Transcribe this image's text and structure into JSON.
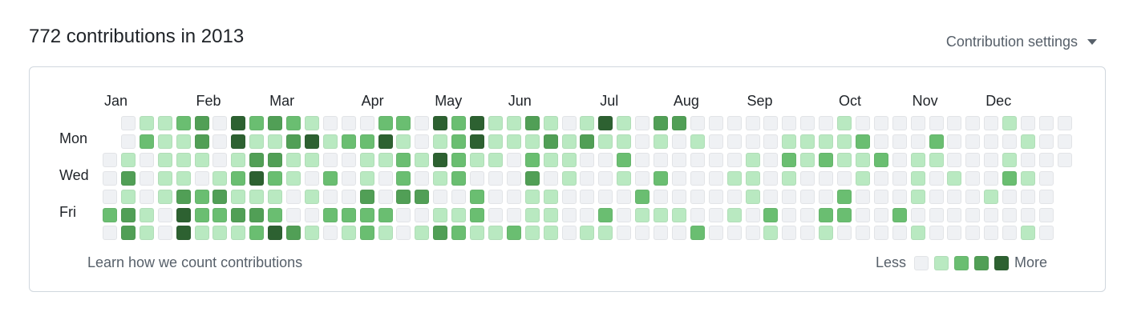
{
  "header": {
    "title": "772 contributions in 2013",
    "settings_label": "Contribution settings"
  },
  "graph": {
    "months": [
      "Jan",
      "Feb",
      "Mar",
      "Apr",
      "May",
      "Jun",
      "Jul",
      "Aug",
      "Sep",
      "Oct",
      "Nov",
      "Dec"
    ],
    "day_labels": [
      "Mon",
      "Wed",
      "Fri"
    ],
    "level_colors": [
      "#eff1f4",
      "#b9e9c1",
      "#6abe71",
      "#519f56",
      "#2d6131"
    ],
    "rows_by_weekday": [
      [
        null,
        0,
        1,
        1,
        2,
        3,
        0,
        4,
        2,
        3,
        2,
        1,
        0,
        0,
        0,
        2,
        2,
        0,
        4,
        2,
        4,
        1,
        1,
        3,
        1,
        0,
        1,
        4,
        1,
        0,
        3,
        3,
        0,
        0,
        0,
        0,
        0,
        0,
        0,
        0,
        1,
        0,
        0,
        0,
        0,
        0,
        0,
        0,
        0,
        1,
        0,
        0,
        0
      ],
      [
        null,
        0,
        2,
        1,
        1,
        3,
        0,
        4,
        1,
        1,
        3,
        4,
        1,
        2,
        2,
        4,
        1,
        0,
        1,
        2,
        4,
        1,
        1,
        1,
        3,
        1,
        3,
        1,
        1,
        0,
        1,
        0,
        1,
        0,
        0,
        0,
        0,
        1,
        1,
        1,
        1,
        2,
        0,
        0,
        0,
        2,
        0,
        0,
        0,
        0,
        1,
        0,
        0
      ],
      [
        0,
        1,
        0,
        1,
        1,
        1,
        0,
        1,
        3,
        3,
        1,
        1,
        0,
        0,
        1,
        1,
        2,
        1,
        4,
        2,
        1,
        1,
        0,
        2,
        1,
        1,
        0,
        0,
        2,
        0,
        0,
        0,
        0,
        0,
        0,
        1,
        0,
        2,
        1,
        2,
        1,
        1,
        2,
        0,
        1,
        1,
        0,
        0,
        0,
        1,
        0,
        0,
        0
      ],
      [
        0,
        3,
        0,
        1,
        1,
        0,
        1,
        2,
        4,
        2,
        1,
        0,
        2,
        0,
        1,
        0,
        2,
        0,
        1,
        2,
        0,
        0,
        0,
        3,
        0,
        1,
        0,
        0,
        1,
        0,
        2,
        0,
        0,
        0,
        1,
        1,
        0,
        1,
        0,
        0,
        0,
        1,
        0,
        0,
        1,
        0,
        1,
        0,
        0,
        2,
        1,
        0,
        null
      ],
      [
        0,
        1,
        0,
        1,
        3,
        2,
        3,
        1,
        1,
        1,
        0,
        1,
        0,
        0,
        3,
        0,
        3,
        3,
        0,
        0,
        2,
        0,
        0,
        1,
        1,
        0,
        0,
        0,
        0,
        2,
        0,
        0,
        0,
        0,
        0,
        1,
        0,
        0,
        0,
        0,
        2,
        0,
        0,
        0,
        1,
        0,
        0,
        0,
        1,
        0,
        0,
        0,
        null
      ],
      [
        2,
        3,
        1,
        0,
        4,
        2,
        2,
        3,
        3,
        2,
        0,
        0,
        2,
        2,
        2,
        2,
        0,
        0,
        1,
        1,
        2,
        0,
        0,
        1,
        1,
        0,
        0,
        2,
        0,
        1,
        1,
        1,
        0,
        0,
        1,
        0,
        2,
        0,
        0,
        2,
        2,
        0,
        0,
        2,
        0,
        0,
        0,
        0,
        0,
        0,
        0,
        0,
        null
      ],
      [
        0,
        3,
        1,
        0,
        4,
        1,
        1,
        1,
        2,
        4,
        3,
        1,
        0,
        1,
        2,
        1,
        0,
        1,
        3,
        2,
        1,
        1,
        2,
        1,
        1,
        0,
        1,
        1,
        0,
        0,
        0,
        0,
        2,
        0,
        0,
        0,
        1,
        0,
        0,
        1,
        0,
        0,
        0,
        0,
        1,
        0,
        0,
        0,
        0,
        0,
        1,
        0,
        null
      ]
    ]
  },
  "footer": {
    "learn_link": "Learn how we count contributions",
    "legend_less": "Less",
    "legend_more": "More"
  }
}
